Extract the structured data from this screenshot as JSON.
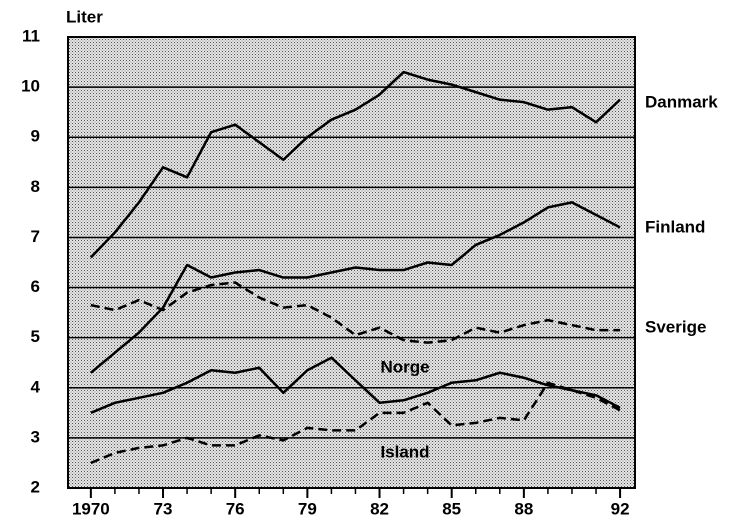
{
  "chart_data": {
    "type": "line",
    "y_label": "Liter",
    "x": [
      1970,
      1971,
      1972,
      1973,
      1974,
      1975,
      1976,
      1977,
      1978,
      1979,
      1980,
      1981,
      1982,
      1983,
      1984,
      1985,
      1986,
      1987,
      1988,
      1989,
      1990,
      1991,
      1992
    ],
    "series": [
      {
        "name": "Danmark",
        "color": "#000000",
        "dash": false,
        "values": [
          6.6,
          7.1,
          7.7,
          8.4,
          8.2,
          9.1,
          9.25,
          8.9,
          8.55,
          9.0,
          9.35,
          9.55,
          9.85,
          10.3,
          10.15,
          10.05,
          9.9,
          9.75,
          9.7,
          9.55,
          9.6,
          9.3,
          9.75
        ]
      },
      {
        "name": "Finland",
        "color": "#000000",
        "dash": false,
        "values": [
          4.3,
          4.7,
          5.1,
          5.6,
          6.45,
          6.2,
          6.3,
          6.35,
          6.2,
          6.2,
          6.3,
          6.4,
          6.35,
          6.35,
          6.5,
          6.45,
          6.85,
          7.05,
          7.3,
          7.6,
          7.7,
          7.45,
          7.2
        ]
      },
      {
        "name": "Sverige",
        "color": "#000000",
        "dash": true,
        "values": [
          5.65,
          5.55,
          5.75,
          5.55,
          5.9,
          6.05,
          6.1,
          5.8,
          5.6,
          5.65,
          5.4,
          5.05,
          5.2,
          4.95,
          4.9,
          4.95,
          5.2,
          5.1,
          5.25,
          5.35,
          5.25,
          5.15,
          5.15
        ]
      },
      {
        "name": "Norge",
        "color": "#000000",
        "dash": false,
        "values": [
          3.5,
          3.7,
          3.8,
          3.9,
          4.1,
          4.35,
          4.3,
          4.4,
          3.9,
          4.35,
          4.6,
          4.15,
          3.7,
          3.75,
          3.9,
          4.1,
          4.15,
          4.3,
          4.2,
          4.05,
          3.95,
          3.85,
          3.6
        ]
      },
      {
        "name": "Island",
        "color": "#000000",
        "dash": true,
        "values": [
          2.5,
          2.7,
          2.8,
          2.85,
          3.0,
          2.85,
          2.85,
          3.05,
          2.95,
          3.2,
          3.15,
          3.15,
          3.5,
          3.5,
          3.7,
          3.25,
          3.3,
          3.4,
          3.35,
          4.1,
          3.95,
          3.8,
          3.55
        ]
      }
    ],
    "xlim": [
      1969.05,
      1992.62
    ],
    "xticks": [
      1970,
      {
        "value": 1973,
        "label": "73"
      },
      {
        "value": 1976,
        "label": "76"
      },
      {
        "value": 1979,
        "label": "79"
      },
      {
        "value": 1982,
        "label": "82"
      },
      {
        "value": 1985,
        "label": "85"
      },
      {
        "value": 1988,
        "label": "88"
      },
      {
        "value": 1992,
        "label": "92"
      }
    ],
    "ylim": [
      2,
      11
    ],
    "yticks": [
      2,
      3,
      4,
      5,
      6,
      7,
      8,
      9,
      10,
      11
    ],
    "grid": true
  }
}
